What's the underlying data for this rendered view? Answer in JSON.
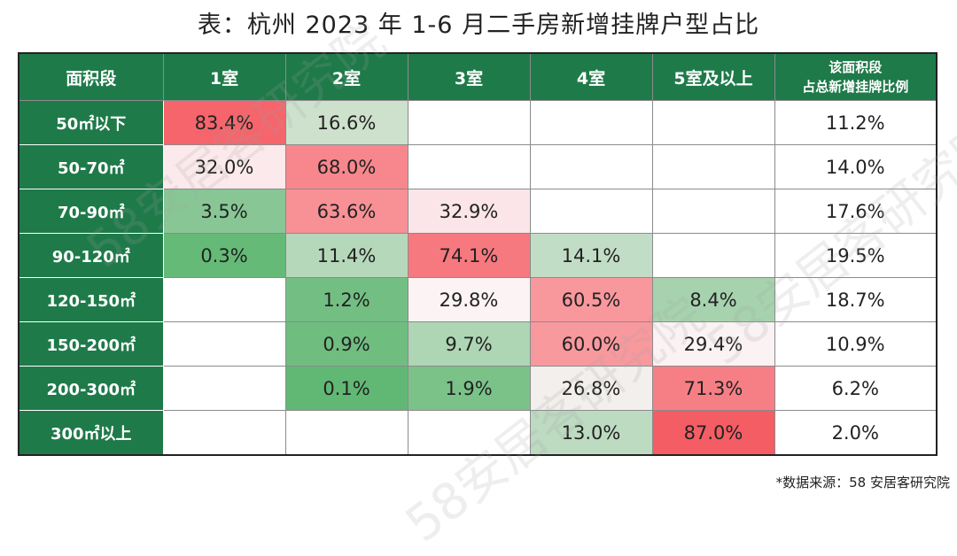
{
  "title": "表：杭州 2023 年 1-6 月二手房新增挂牌户型占比",
  "source": "*数据来源：58 安居客研究院",
  "watermark": "58安居客研究院",
  "chart_data": {
    "type": "table",
    "title": "表：杭州 2023 年 1-6 月二手房新增挂牌户型占比",
    "columns": [
      "面积段",
      "1室",
      "2室",
      "3室",
      "4室",
      "5室及以上"
    ],
    "share_column": {
      "line1": "该面积段",
      "line2": "占总新增挂牌比例"
    },
    "rows": [
      {
        "label": "50㎡以下",
        "values": [
          83.4,
          16.6,
          null,
          null,
          null
        ],
        "share": 11.2
      },
      {
        "label": "50-70㎡",
        "values": [
          32.0,
          68.0,
          null,
          null,
          null
        ],
        "share": 14.0
      },
      {
        "label": "70-90㎡",
        "values": [
          3.5,
          63.6,
          32.9,
          null,
          null
        ],
        "share": 17.6
      },
      {
        "label": "90-120㎡",
        "values": [
          0.3,
          11.4,
          74.1,
          14.1,
          null
        ],
        "share": 19.5
      },
      {
        "label": "120-150㎡",
        "values": [
          null,
          1.2,
          29.8,
          60.5,
          8.4
        ],
        "share": 18.7
      },
      {
        "label": "150-200㎡",
        "values": [
          null,
          0.9,
          9.7,
          60.0,
          29.4
        ],
        "share": 10.9
      },
      {
        "label": "200-300㎡",
        "values": [
          null,
          0.1,
          1.9,
          26.8,
          71.3
        ],
        "share": 6.2
      },
      {
        "label": "300㎡以上",
        "values": [
          null,
          null,
          null,
          13.0,
          87.0
        ],
        "share": 2.0
      }
    ],
    "unit": "%",
    "colors": {
      "header": "#1f7a4a",
      "low": "#5cb670",
      "mid": "#fdf3f5",
      "high": "#f4575e"
    }
  }
}
